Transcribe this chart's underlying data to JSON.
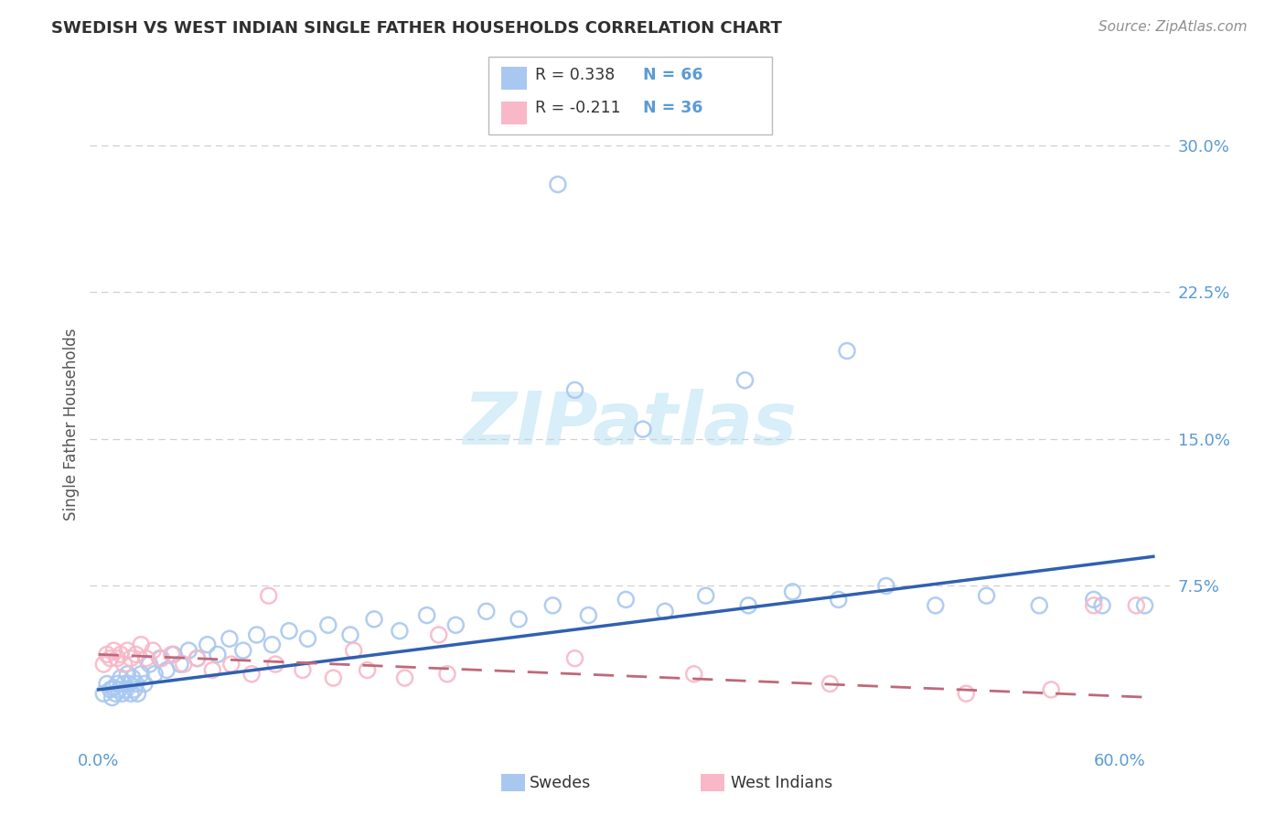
{
  "title": "SWEDISH VS WEST INDIAN SINGLE FATHER HOUSEHOLDS CORRELATION CHART",
  "source": "Source: ZipAtlas.com",
  "ylabel": "Single Father Households",
  "xlim": [
    -0.005,
    0.63
  ],
  "ylim": [
    -0.005,
    0.32
  ],
  "yticks": [
    0.075,
    0.15,
    0.225,
    0.3
  ],
  "ytick_labels": [
    "7.5%",
    "15.0%",
    "22.5%",
    "30.0%"
  ],
  "xticks": [
    0.0,
    0.6
  ],
  "xtick_labels": [
    "0.0%",
    "60.0%"
  ],
  "swedish_color": "#a8c8f0",
  "swedish_edge_color": "#7aa8d8",
  "swedish_line_color": "#3060b0",
  "west_indian_color": "#f8b8c8",
  "west_indian_edge_color": "#d88898",
  "west_indian_line_color": "#c06878",
  "title_color": "#303030",
  "source_color": "#909090",
  "axis_label_color": "#5b9bd5",
  "watermark_color": "#d8eef8",
  "grid_color": "#d0d0d0",
  "background_color": "#ffffff",
  "sw_x": [
    0.003,
    0.005,
    0.007,
    0.008,
    0.009,
    0.01,
    0.011,
    0.012,
    0.013,
    0.014,
    0.015,
    0.016,
    0.017,
    0.018,
    0.019,
    0.02,
    0.021,
    0.022,
    0.023,
    0.025,
    0.027,
    0.03,
    0.033,
    0.036,
    0.04,
    0.044,
    0.048,
    0.053,
    0.058,
    0.064,
    0.07,
    0.077,
    0.085,
    0.093,
    0.102,
    0.112,
    0.123,
    0.135,
    0.148,
    0.162,
    0.177,
    0.193,
    0.21,
    0.228,
    0.247,
    0.267,
    0.288,
    0.31,
    0.333,
    0.357,
    0.382,
    0.408,
    0.435,
    0.463,
    0.492,
    0.522,
    0.553,
    0.585,
    0.615,
    0.28,
    0.44,
    0.27,
    0.32,
    0.38,
    0.59
  ],
  "sw_y": [
    0.02,
    0.025,
    0.022,
    0.018,
    0.023,
    0.02,
    0.025,
    0.022,
    0.028,
    0.02,
    0.025,
    0.022,
    0.03,
    0.025,
    0.02,
    0.028,
    0.022,
    0.025,
    0.02,
    0.03,
    0.025,
    0.035,
    0.03,
    0.038,
    0.032,
    0.04,
    0.035,
    0.042,
    0.038,
    0.045,
    0.04,
    0.048,
    0.042,
    0.05,
    0.045,
    0.052,
    0.048,
    0.055,
    0.05,
    0.058,
    0.052,
    0.06,
    0.055,
    0.062,
    0.058,
    0.065,
    0.06,
    0.068,
    0.062,
    0.07,
    0.065,
    0.072,
    0.068,
    0.075,
    0.065,
    0.07,
    0.065,
    0.068,
    0.065,
    0.175,
    0.195,
    0.28,
    0.155,
    0.18,
    0.065
  ],
  "wi_x": [
    0.003,
    0.005,
    0.007,
    0.009,
    0.011,
    0.013,
    0.015,
    0.017,
    0.019,
    0.022,
    0.025,
    0.028,
    0.032,
    0.037,
    0.043,
    0.05,
    0.058,
    0.067,
    0.078,
    0.09,
    0.104,
    0.12,
    0.138,
    0.158,
    0.18,
    0.205,
    0.1,
    0.15,
    0.2,
    0.28,
    0.35,
    0.43,
    0.51,
    0.56,
    0.585,
    0.61
  ],
  "wi_y": [
    0.035,
    0.04,
    0.038,
    0.042,
    0.038,
    0.04,
    0.035,
    0.042,
    0.038,
    0.04,
    0.045,
    0.038,
    0.042,
    0.038,
    0.04,
    0.035,
    0.038,
    0.032,
    0.035,
    0.03,
    0.035,
    0.032,
    0.028,
    0.032,
    0.028,
    0.03,
    0.07,
    0.042,
    0.05,
    0.038,
    0.03,
    0.025,
    0.02,
    0.022,
    0.065,
    0.065
  ],
  "sw_trend_x": [
    0.0,
    0.62
  ],
  "sw_trend_y": [
    0.022,
    0.09
  ],
  "wi_trend_x": [
    0.0,
    0.62
  ],
  "wi_trend_y": [
    0.04,
    0.018
  ]
}
